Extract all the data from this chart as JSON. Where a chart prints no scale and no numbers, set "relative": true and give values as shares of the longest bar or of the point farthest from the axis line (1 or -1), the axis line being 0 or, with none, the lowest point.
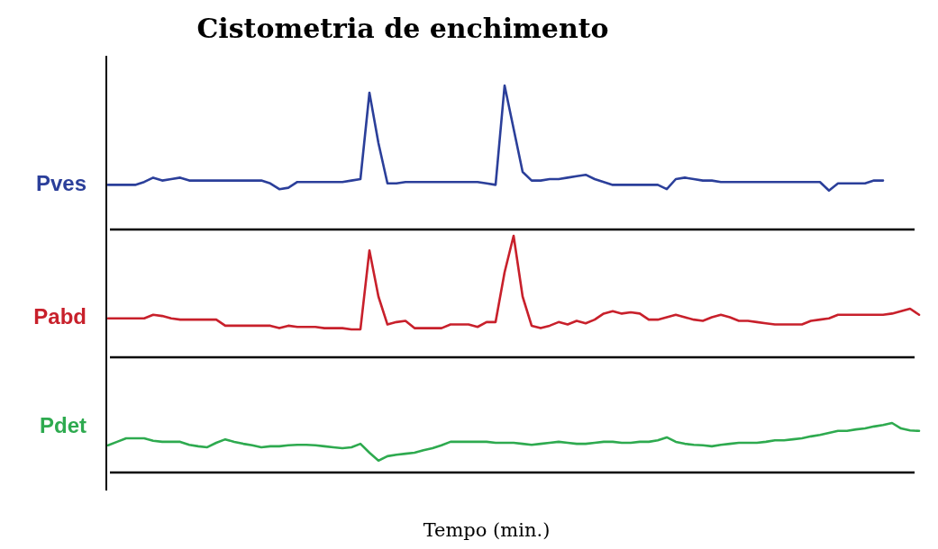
{
  "chart_data": [
    {
      "type": "line",
      "title": "Cistometria de enchimento",
      "relative": true,
      "categories": [
        null,
        null,
        null,
        null,
        null,
        null,
        null,
        null,
        null,
        null,
        null,
        null,
        null,
        null,
        null,
        null,
        null,
        null,
        null,
        null,
        null,
        null,
        null,
        null,
        null,
        null,
        null,
        null,
        null,
        null,
        null,
        null,
        null,
        null,
        null,
        null,
        null,
        null,
        null,
        null,
        null,
        null,
        null,
        null,
        null,
        null,
        null,
        null,
        null,
        null,
        null,
        null,
        null,
        null,
        null,
        null,
        null,
        null,
        null,
        null,
        null,
        null,
        null,
        null,
        null,
        null,
        null,
        null,
        null,
        null,
        null,
        null,
        null,
        null,
        null,
        null,
        null,
        null,
        null,
        null,
        null,
        null,
        null,
        null,
        null,
        null,
        null,
        null,
        null,
        null,
        null
      ],
      "series": [
        {
          "name": "Pves",
          "color": "#2b3f9a",
          "values": [
            0.31,
            0.31,
            0.31,
            0.31,
            0.33,
            0.36,
            0.34,
            0.35,
            0.36,
            0.34,
            0.34,
            0.34,
            0.34,
            0.34,
            0.34,
            0.34,
            0.34,
            0.34,
            0.32,
            0.28,
            0.29,
            0.33,
            0.33,
            0.33,
            0.33,
            0.33,
            0.33,
            0.34,
            0.35,
            0.95,
            0.6,
            0.32,
            0.32,
            0.33,
            0.33,
            0.33,
            0.33,
            0.33,
            0.33,
            0.33,
            0.33,
            0.33,
            0.32,
            0.31,
            1,
            0.7,
            0.4,
            0.34,
            0.34,
            0.35,
            0.35,
            0.36,
            0.37,
            0.38,
            0.35,
            0.33,
            0.31,
            0.31,
            0.31,
            0.31,
            0.31,
            0.31,
            0.28,
            0.35,
            0.36,
            0.35,
            0.34,
            0.34,
            0.33,
            0.33,
            0.33,
            0.33,
            0.33,
            0.33,
            0.33,
            0.33,
            0.33,
            0.33,
            0.33,
            0.33,
            0.27,
            0.32,
            0.32,
            0.32,
            0.32,
            0.34,
            0.34,
            null,
            null,
            null,
            null
          ]
        }
      ]
    },
    {
      "type": "line",
      "relative": true,
      "categories": [
        null,
        null,
        null,
        null,
        null,
        null,
        null,
        null,
        null,
        null,
        null,
        null,
        null,
        null,
        null,
        null,
        null,
        null,
        null,
        null,
        null,
        null,
        null,
        null,
        null,
        null,
        null,
        null,
        null,
        null,
        null,
        null,
        null,
        null,
        null,
        null,
        null,
        null,
        null,
        null,
        null,
        null,
        null,
        null,
        null,
        null,
        null,
        null,
        null,
        null,
        null,
        null,
        null,
        null,
        null,
        null,
        null,
        null,
        null,
        null,
        null,
        null,
        null,
        null,
        null,
        null,
        null,
        null,
        null,
        null,
        null,
        null,
        null,
        null,
        null,
        null,
        null,
        null,
        null,
        null,
        null,
        null,
        null,
        null,
        null,
        null,
        null,
        null,
        null,
        null,
        null
      ],
      "series": [
        {
          "name": "Pabd",
          "color": "#c8202b",
          "values": [
            0.32,
            0.32,
            0.32,
            0.32,
            0.32,
            0.35,
            0.34,
            0.32,
            0.31,
            0.31,
            0.31,
            0.31,
            0.31,
            0.26,
            0.26,
            0.26,
            0.26,
            0.26,
            0.26,
            0.24,
            0.26,
            0.25,
            0.25,
            0.25,
            0.24,
            0.24,
            0.24,
            0.23,
            0.23,
            0.88,
            0.5,
            0.27,
            0.29,
            0.3,
            0.24,
            0.24,
            0.24,
            0.24,
            0.27,
            0.27,
            0.27,
            0.25,
            0.29,
            0.29,
            0.7,
            1,
            0.5,
            0.26,
            0.24,
            0.26,
            0.29,
            0.27,
            0.3,
            0.28,
            0.31,
            0.36,
            0.38,
            0.36,
            0.37,
            0.36,
            0.31,
            0.31,
            0.33,
            0.35,
            0.33,
            0.31,
            0.3,
            0.33,
            0.35,
            0.33,
            0.3,
            0.3,
            0.29,
            0.28,
            0.27,
            0.27,
            0.27,
            0.27,
            0.3,
            0.31,
            0.32,
            0.35,
            0.35,
            0.35,
            0.35,
            0.35,
            0.35,
            0.36,
            0.38,
            0.4,
            0.35
          ]
        }
      ]
    },
    {
      "type": "line",
      "relative": true,
      "xlabel": "Tempo (min.)",
      "categories": [
        null,
        null,
        null,
        null,
        null,
        null,
        null,
        null,
        null,
        null,
        null,
        null,
        null,
        null,
        null,
        null,
        null,
        null,
        null,
        null,
        null,
        null,
        null,
        null,
        null,
        null,
        null,
        null,
        null,
        null,
        null,
        null,
        null,
        null,
        null,
        null,
        null,
        null,
        null,
        null,
        null,
        null,
        null,
        null,
        null,
        null,
        null,
        null,
        null,
        null,
        null,
        null,
        null,
        null,
        null,
        null,
        null,
        null,
        null,
        null,
        null,
        null,
        null,
        null,
        null,
        null,
        null,
        null,
        null,
        null,
        null,
        null,
        null,
        null,
        null,
        null,
        null,
        null,
        null,
        null,
        null,
        null,
        null,
        null,
        null,
        null,
        null,
        null,
        null,
        null,
        null
      ],
      "series": [
        {
          "name": "Pdet",
          "color": "#2eaa4f",
          "values": [
            0.55,
            0.62,
            0.69,
            0.69,
            0.69,
            0.64,
            0.62,
            0.62,
            0.62,
            0.56,
            0.53,
            0.51,
            0.6,
            0.67,
            0.62,
            0.58,
            0.55,
            0.51,
            0.53,
            0.53,
            0.55,
            0.56,
            0.56,
            0.55,
            0.53,
            0.51,
            0.49,
            0.51,
            0.58,
            0.4,
            0.24,
            0.33,
            0.36,
            0.38,
            0.4,
            0.45,
            0.49,
            0.55,
            0.62,
            0.62,
            0.62,
            0.62,
            0.62,
            0.6,
            0.6,
            0.6,
            0.58,
            0.56,
            0.58,
            0.6,
            0.62,
            0.6,
            0.58,
            0.58,
            0.6,
            0.62,
            0.62,
            0.6,
            0.6,
            0.62,
            0.62,
            0.65,
            0.71,
            0.62,
            0.58,
            0.56,
            0.55,
            0.53,
            0.56,
            0.58,
            0.6,
            0.6,
            0.6,
            0.62,
            0.65,
            0.65,
            0.67,
            0.69,
            0.73,
            0.76,
            0.8,
            0.84,
            0.84,
            0.87,
            0.89,
            0.93,
            0.96,
            1,
            0.89,
            0.85,
            0.84
          ]
        }
      ]
    }
  ]
}
